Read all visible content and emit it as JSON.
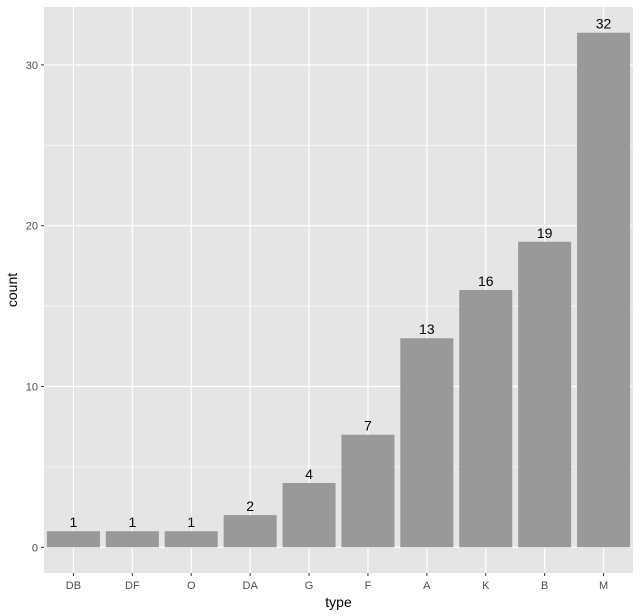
{
  "chart_data": {
    "type": "bar",
    "title": "",
    "xlabel": "type",
    "ylabel": "count",
    "categories": [
      "DB",
      "DF",
      "O",
      "DA",
      "G",
      "F",
      "A",
      "K",
      "B",
      "M"
    ],
    "values": [
      1,
      1,
      1,
      2,
      4,
      7,
      13,
      16,
      19,
      32
    ],
    "data_labels": [
      "1",
      "1",
      "1",
      "2",
      "4",
      "7",
      "13",
      "16",
      "19",
      "32"
    ],
    "ylim": [
      -1.6,
      33.6
    ],
    "y_ticks": [
      0,
      10,
      20,
      30
    ],
    "y_tick_labels": [
      "0",
      "10",
      "20",
      "30"
    ],
    "grid": true,
    "legend": "none"
  },
  "colors": {
    "panel_background": "#e5e5e5",
    "grid_line": "#ffffff",
    "bar_fill": "#999999",
    "tick_label": "#4d4d4d"
  }
}
